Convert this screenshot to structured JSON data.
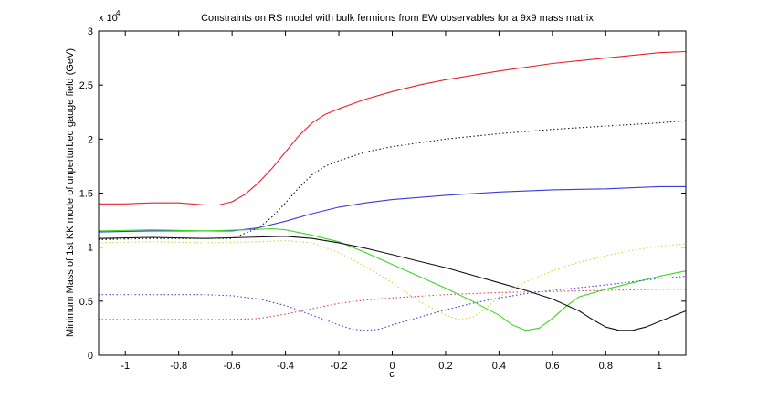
{
  "chart_data": {
    "type": "line",
    "title": "Constraints on RS model with bulk fermions from EW observables for a 9x9 mass matrix",
    "xlabel": "c",
    "ylabel": "Minimum Mass of 1st KK mode of unperturbed gauge field (GeV)",
    "xlim": [
      -1.1,
      1.1
    ],
    "ylim": [
      0,
      30000
    ],
    "y_multiplier_label": "x 10",
    "y_multiplier_exponent": "4",
    "x_ticks": [
      -1,
      -0.8,
      -0.6,
      -0.4,
      -0.2,
      0,
      0.2,
      0.4,
      0.6,
      0.8,
      1
    ],
    "x_tick_labels": [
      "-1",
      "-0.8",
      "-0.6",
      "-0.4",
      "-0.2",
      "0",
      "0.2",
      "0.4",
      "0.6",
      "0.8",
      "1"
    ],
    "y_ticks": [
      0,
      5000,
      10000,
      15000,
      20000,
      25000,
      30000
    ],
    "y_tick_labels": [
      "0",
      "0.5",
      "1",
      "1.5",
      "2",
      "2.5",
      "3"
    ],
    "grid": false,
    "series": [
      {
        "color": "#e8202a",
        "style": "solid",
        "x": [
          -1.1,
          -1.0,
          -0.9,
          -0.8,
          -0.7,
          -0.65,
          -0.6,
          -0.55,
          -0.5,
          -0.45,
          -0.4,
          -0.35,
          -0.3,
          -0.25,
          -0.2,
          -0.1,
          0,
          0.1,
          0.2,
          0.4,
          0.6,
          0.8,
          1.0,
          1.1
        ],
        "y": [
          14000,
          14000,
          14100,
          14100,
          13900,
          13900,
          14200,
          14900,
          16000,
          17300,
          18800,
          20300,
          21500,
          22300,
          22800,
          23700,
          24400,
          25000,
          25500,
          26300,
          27000,
          27500,
          28000,
          28100
        ]
      },
      {
        "color": "#3b3bd9",
        "style": "solid",
        "x": [
          -1.1,
          -0.9,
          -0.7,
          -0.6,
          -0.5,
          -0.4,
          -0.3,
          -0.2,
          -0.1,
          0,
          0.2,
          0.4,
          0.6,
          0.8,
          1.0,
          1.1
        ],
        "y": [
          11400,
          11500,
          11500,
          11500,
          11800,
          12400,
          13100,
          13700,
          14100,
          14400,
          14800,
          15100,
          15300,
          15400,
          15600,
          15600
        ]
      },
      {
        "color": "#39d920",
        "style": "solid",
        "x": [
          -1.1,
          -0.9,
          -0.7,
          -0.55,
          -0.45,
          -0.4,
          -0.3,
          -0.2,
          -0.1,
          0,
          0.1,
          0.2,
          0.3,
          0.4,
          0.45,
          0.5,
          0.55,
          0.6,
          0.65,
          0.7,
          0.8,
          0.9,
          1.0,
          1.1
        ],
        "y": [
          11500,
          11600,
          11500,
          11600,
          11700,
          11600,
          11100,
          10500,
          9500,
          8400,
          7300,
          6200,
          5000,
          3700,
          2800,
          2300,
          2500,
          3400,
          4500,
          5400,
          6100,
          6700,
          7300,
          7800
        ]
      },
      {
        "color": "#111111",
        "style": "solid",
        "x": [
          -1.1,
          -0.9,
          -0.7,
          -0.55,
          -0.4,
          -0.3,
          -0.2,
          -0.1,
          0,
          0.1,
          0.2,
          0.3,
          0.4,
          0.5,
          0.6,
          0.7,
          0.75,
          0.8,
          0.85,
          0.9,
          0.95,
          1.0,
          1.1
        ],
        "y": [
          10800,
          10900,
          10800,
          10900,
          11000,
          10800,
          10400,
          9900,
          9300,
          8700,
          8100,
          7400,
          6700,
          6000,
          5200,
          4100,
          3300,
          2600,
          2300,
          2300,
          2600,
          3100,
          4100
        ]
      },
      {
        "color": "#222222",
        "style": "dotted",
        "x": [
          -1.1,
          -0.9,
          -0.7,
          -0.6,
          -0.5,
          -0.45,
          -0.4,
          -0.35,
          -0.3,
          -0.25,
          -0.2,
          -0.1,
          0,
          0.2,
          0.4,
          0.6,
          0.8,
          1.0,
          1.1
        ],
        "y": [
          10700,
          10800,
          10800,
          10800,
          11800,
          12800,
          14100,
          15500,
          16700,
          17500,
          18000,
          18800,
          19300,
          20000,
          20500,
          20900,
          21200,
          21500,
          21700
        ]
      },
      {
        "color": "#d6d64a",
        "style": "dotted",
        "x": [
          -1.1,
          -0.9,
          -0.7,
          -0.5,
          -0.4,
          -0.3,
          -0.2,
          -0.1,
          0,
          0.1,
          0.2,
          0.25,
          0.3,
          0.35,
          0.4,
          0.5,
          0.6,
          0.7,
          0.8,
          0.9,
          1.0,
          1.1
        ],
        "y": [
          10400,
          10500,
          10400,
          10500,
          10600,
          10400,
          9500,
          8200,
          6700,
          5000,
          3700,
          3300,
          3500,
          4300,
          5400,
          6800,
          7800,
          8600,
          9200,
          9700,
          10100,
          10300
        ]
      },
      {
        "color": "#4a4ad9",
        "style": "dotted",
        "x": [
          -1.1,
          -0.9,
          -0.7,
          -0.6,
          -0.5,
          -0.4,
          -0.3,
          -0.2,
          -0.15,
          -0.1,
          -0.05,
          0,
          0.1,
          0.2,
          0.3,
          0.4,
          0.5,
          0.6,
          0.8,
          1.0,
          1.1
        ],
        "y": [
          5600,
          5600,
          5600,
          5500,
          5200,
          4600,
          3700,
          2800,
          2400,
          2300,
          2400,
          2800,
          3500,
          4200,
          4800,
          5300,
          5700,
          6000,
          6500,
          7100,
          7300
        ]
      },
      {
        "color": "#d94a5a",
        "style": "dotted",
        "x": [
          -1.1,
          -0.9,
          -0.7,
          -0.6,
          -0.5,
          -0.4,
          -0.3,
          -0.2,
          -0.1,
          0,
          0.2,
          0.4,
          0.6,
          0.8,
          1.0,
          1.1
        ],
        "y": [
          3300,
          3300,
          3300,
          3300,
          3400,
          3800,
          4300,
          4800,
          5100,
          5300,
          5600,
          5800,
          5900,
          6000,
          6100,
          6100
        ]
      }
    ]
  }
}
